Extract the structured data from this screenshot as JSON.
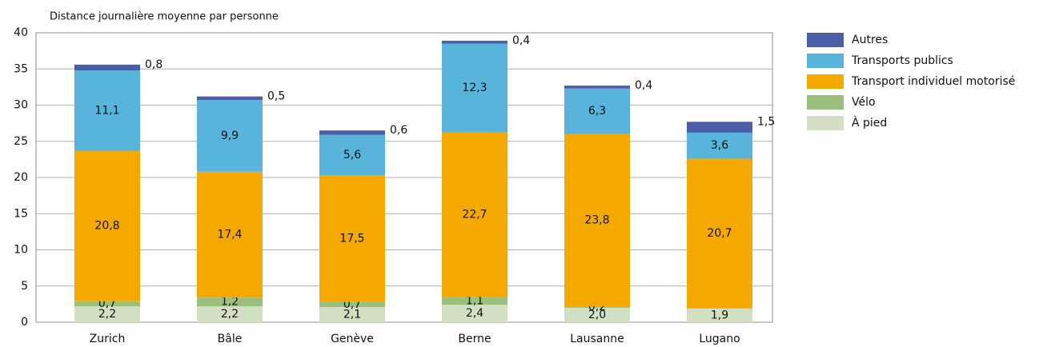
{
  "chart_data": {
    "type": "stacked_bar",
    "title": "Distance journalière moyenne par personne",
    "categories": [
      "Zurich",
      "Bâle",
      "Genève",
      "Berne",
      "Lausanne",
      "Lugano"
    ],
    "series": [
      {
        "name": "À pied",
        "color": "#d3dfc3",
        "label_color": "#111111",
        "values": [
          2.2,
          2.2,
          2.1,
          2.4,
          2.0,
          1.9
        ],
        "value_labels": [
          "2,2",
          "2,2",
          "2,1",
          "2,4",
          "2,0",
          "1,9"
        ]
      },
      {
        "name": "Vélo",
        "color": "#9bbf7d",
        "label_color": "#111111",
        "values": [
          0.7,
          1.2,
          0.7,
          1.1,
          0.2,
          null
        ],
        "value_labels": [
          "0,7",
          "1,2",
          "0,7",
          "1,1",
          "0,2",
          null
        ]
      },
      {
        "name": "Transport individuel motorisé",
        "color": "#f5a800",
        "label_color": "#111111",
        "values": [
          20.8,
          17.4,
          17.5,
          22.7,
          23.8,
          20.7
        ],
        "value_labels": [
          "20,8",
          "17,4",
          "17,5",
          "22,7",
          "23,8",
          "20,7"
        ]
      },
      {
        "name": "Transports publics",
        "color": "#59b4dc",
        "label_color": "#ffffff",
        "values": [
          11.1,
          9.9,
          5.6,
          12.3,
          6.3,
          3.6
        ],
        "value_labels": [
          "11,1",
          "9,9",
          "5,6",
          "12,3",
          "6,3",
          "3,6"
        ]
      },
      {
        "name": "Autres",
        "color": "#4a5da6",
        "label_color": "#111111",
        "values": [
          0.8,
          0.5,
          0.6,
          0.4,
          0.4,
          1.5
        ],
        "value_labels": [
          "0,8",
          "0,5",
          "0,6",
          "0,4",
          "0,4",
          "1,5"
        ]
      }
    ],
    "ylim": [
      0,
      40
    ],
    "yticks": [
      0,
      5,
      10,
      15,
      20,
      25,
      30,
      35,
      40
    ],
    "grid": true,
    "legend": "right"
  }
}
